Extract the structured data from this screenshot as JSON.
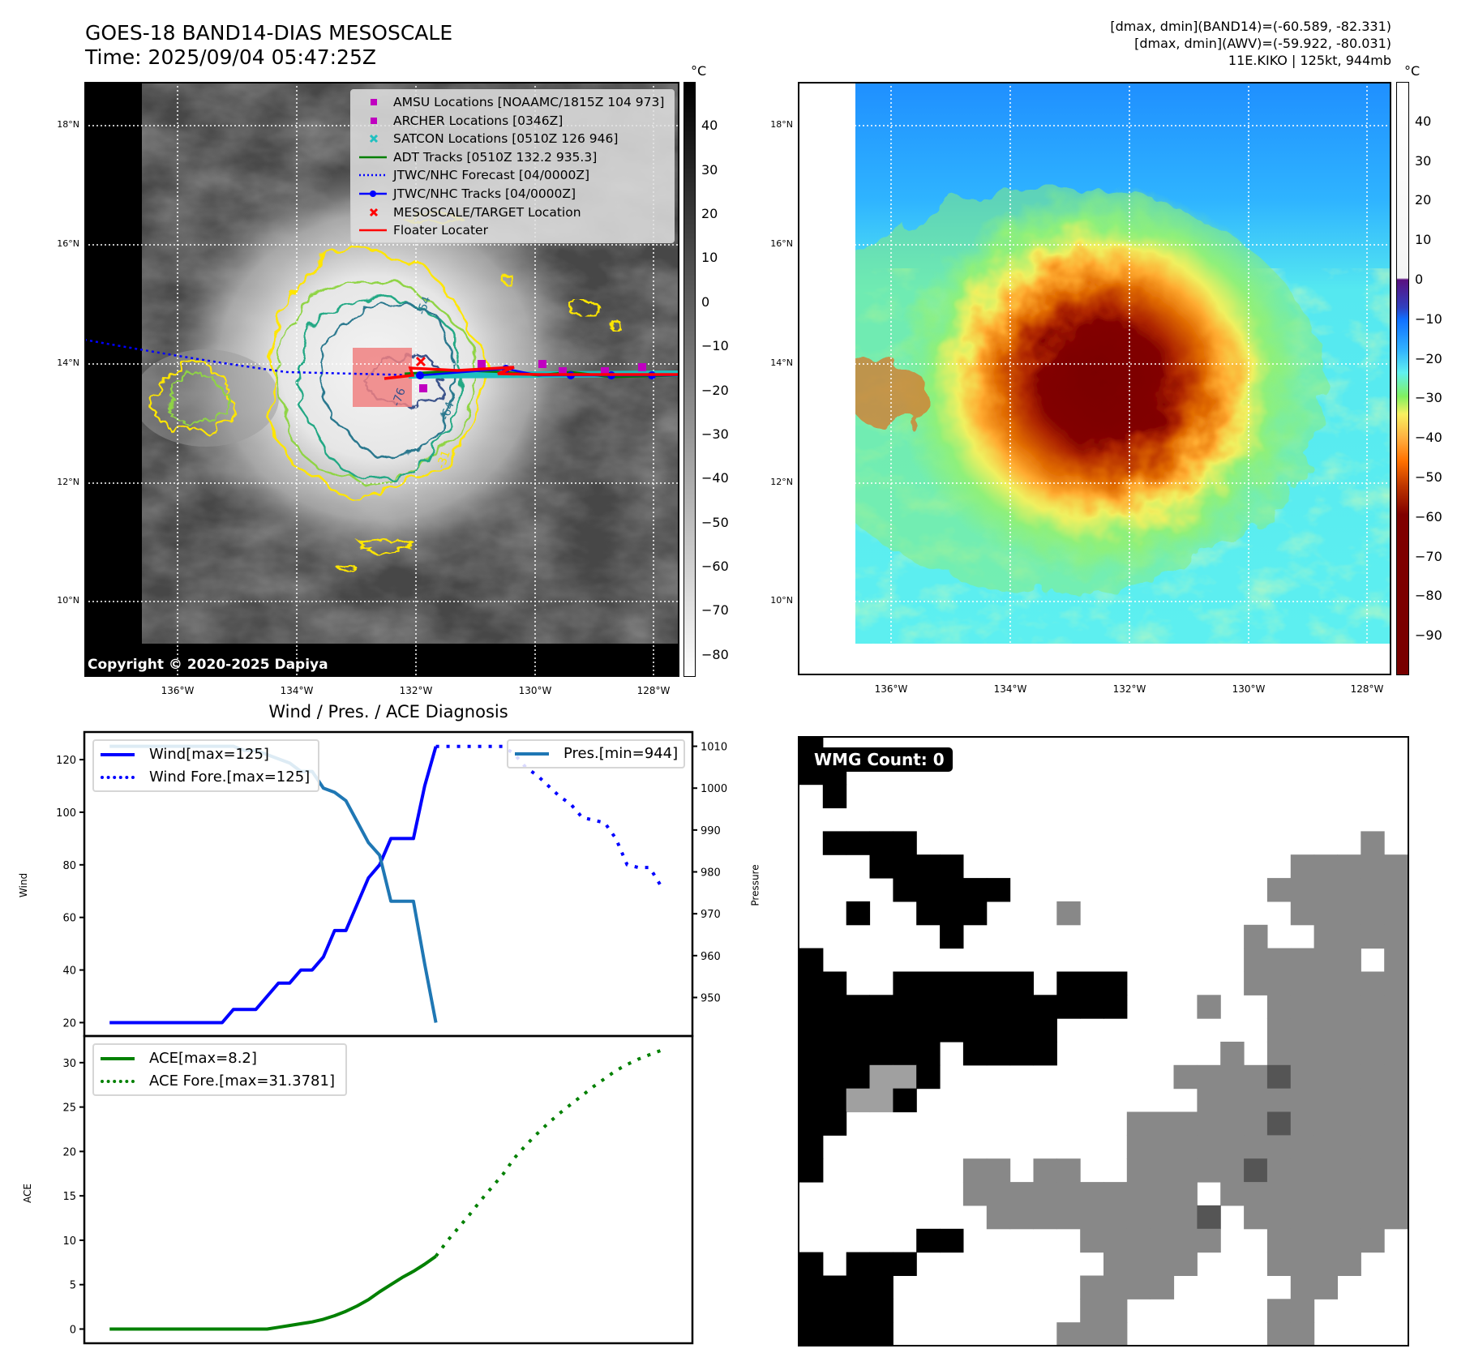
{
  "header": {
    "title": "GOES-18 BAND14-DIAS MESOSCALE",
    "time": "Time: 2025/09/04 05:47:25Z",
    "stats": [
      "[dmax, dmin](BAND14)=(-60.589, -82.331)",
      "[dmax, dmin](AWV)=(-59.922, -80.031)",
      "11E.KIKO | 125kt, 944mb"
    ]
  },
  "maps": {
    "lat_labels": [
      "18°N",
      "16°N",
      "14°N",
      "12°N",
      "10°N"
    ],
    "lon_labels": [
      "136°W",
      "134°W",
      "132°W",
      "130°W",
      "128°W"
    ],
    "unit": "°C",
    "copyright": "Copyright © 2020-2025 Dapiya",
    "contour_labels": [
      "-31",
      "-54",
      "-64",
      "-76"
    ]
  },
  "map_legend": [
    {
      "label": "AMSU Locations [NOAAMC/1815Z 104 973]",
      "color": "#c000c0",
      "symbol": "square"
    },
    {
      "label": "ARCHER Locations [0346Z]",
      "color": "#c000c0",
      "symbol": "square"
    },
    {
      "label": "SATCON Locations [0510Z 126 946]",
      "color": "#20c0c0",
      "symbol": "x"
    },
    {
      "label": "ADT Tracks [0510Z 132.2 935.3]",
      "color": "#008000",
      "symbol": "line"
    },
    {
      "label": "JTWC/NHC Forecast [04/0000Z]",
      "color": "#0000ff",
      "symbol": "dotted"
    },
    {
      "label": "JTWC/NHC Tracks [04/0000Z]",
      "color": "#0000ff",
      "symbol": "line-dot"
    },
    {
      "label": "MESOSCALE/TARGET Location",
      "color": "#ff0000",
      "symbol": "x"
    },
    {
      "label": "Floater Locater",
      "color": "#ff0000",
      "symbol": "line"
    }
  ],
  "colorbar_left": {
    "ticks": [
      40,
      30,
      20,
      10,
      0,
      -10,
      -20,
      -30,
      -40,
      -50,
      -60,
      -70,
      -80
    ],
    "range": [
      -85,
      50
    ]
  },
  "colorbar_right": {
    "ticks": [
      40,
      30,
      20,
      10,
      0,
      -10,
      -20,
      -30,
      -40,
      -50,
      -60,
      -70,
      -80,
      -90
    ],
    "range": [
      -100,
      50
    ]
  },
  "chart_data": [
    {
      "type": "line",
      "title": "Wind / Pres. / ACE Diagnosis",
      "ylabel": "Wind",
      "y2label": "Pressure",
      "ylim": [
        14.9,
        130.5
      ],
      "y2lim": [
        940.8,
        1013.4
      ],
      "xlim": [
        -2.25,
        51.8
      ],
      "yticks": [
        20,
        40,
        60,
        80,
        100,
        120
      ],
      "y2ticks": [
        950,
        960,
        970,
        980,
        990,
        1000,
        1010
      ],
      "series": [
        {
          "name": "Wind[max=125]",
          "axis": "left",
          "color": "#0000ff",
          "style": "solid",
          "x_start": 0,
          "values": [
            20,
            20,
            20,
            20,
            20,
            20,
            20,
            20,
            20,
            20,
            20,
            25,
            25,
            25,
            30,
            35,
            35,
            40,
            40,
            45,
            55,
            55,
            65,
            75,
            80,
            90,
            90,
            90,
            110,
            125
          ]
        },
        {
          "name": "Wind Fore.[max=125]",
          "axis": "left",
          "color": "#0000ff",
          "style": "dotted",
          "x_start": 29,
          "values": [
            125,
            125,
            125,
            125,
            125,
            125,
            125,
            122,
            117,
            114,
            110,
            106,
            103,
            98,
            97,
            96,
            90,
            80,
            79,
            79,
            72
          ]
        },
        {
          "name": "Pres.[min=944]",
          "axis": "right",
          "color": "#1f77b4",
          "style": "solid",
          "x_start": 0,
          "values": [
            1010,
            1010,
            1010,
            1010,
            1010,
            1010,
            1010,
            1010,
            1010,
            1010,
            1010,
            1010,
            1009,
            1009,
            1008,
            1007,
            1006,
            1004,
            1004,
            1000,
            999,
            997,
            992,
            987,
            984,
            973,
            973,
            973,
            958,
            944
          ]
        }
      ]
    },
    {
      "type": "line",
      "ylabel": "ACE",
      "ylim": [
        -1.6,
        33.0
      ],
      "xlim": [
        -2.25,
        51.8
      ],
      "yticks": [
        0,
        5,
        10,
        15,
        20,
        25,
        30
      ],
      "series": [
        {
          "name": "ACE[max=8.2]",
          "color": "#008000",
          "style": "solid",
          "x_start": 0,
          "values": [
            0,
            0,
            0,
            0,
            0,
            0,
            0,
            0,
            0,
            0,
            0,
            0,
            0,
            0,
            0,
            0.2,
            0.4,
            0.6,
            0.8,
            1.1,
            1.5,
            2.0,
            2.6,
            3.3,
            4.2,
            5.0,
            5.8,
            6.5,
            7.3,
            8.2
          ]
        },
        {
          "name": "ACE Fore.[max=31.3781]",
          "color": "#008000",
          "style": "dotted",
          "x_start": 29,
          "values": [
            8.2,
            9.9,
            11.4,
            12.9,
            14.5,
            16.0,
            17.5,
            19.3,
            20.7,
            22.0,
            23.2,
            24.3,
            25.3,
            26.3,
            27.3,
            28.2,
            29.1,
            29.8,
            30.4,
            30.9,
            31.3781
          ]
        }
      ]
    }
  ],
  "wmg": {
    "label": "WMG Count: 0"
  }
}
